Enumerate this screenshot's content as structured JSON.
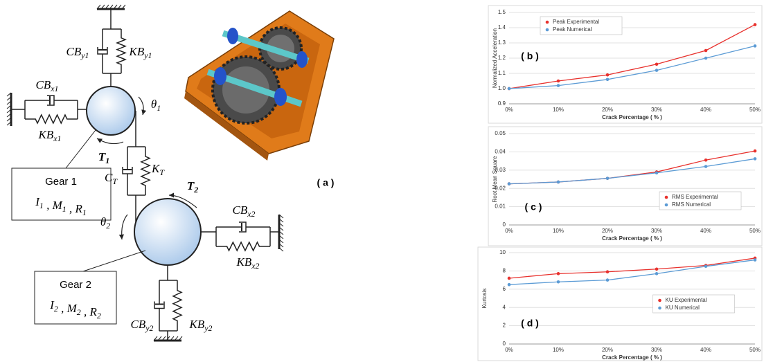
{
  "diagram": {
    "labels": [
      {
        "main": "CB",
        "sub": "y1"
      },
      {
        "main": "KB",
        "sub": "y1"
      },
      {
        "main": "CB",
        "sub": "x1"
      },
      {
        "main": "KB",
        "sub": "x1"
      },
      {
        "main": "θ",
        "sub": "1"
      },
      {
        "main": "T",
        "sub": "1"
      },
      {
        "main": "C",
        "sub": "T"
      },
      {
        "main": "K",
        "sub": "T"
      },
      {
        "main": "T",
        "sub": "2"
      },
      {
        "main": "θ",
        "sub": "2"
      },
      {
        "main": "CB",
        "sub": "x2"
      },
      {
        "main": "KB",
        "sub": "x2"
      },
      {
        "main": "CB",
        "sub": "y2"
      },
      {
        "main": "KB",
        "sub": "y2"
      }
    ],
    "gear1": {
      "title": "Gear 1",
      "params": [
        {
          "main": "I",
          "sub": "1"
        },
        {
          "main": " , M",
          "sub": "1"
        },
        {
          "main": " , R",
          "sub": "1"
        }
      ]
    },
    "gear2": {
      "title": "Gear 2",
      "params": [
        {
          "main": "I",
          "sub": "2"
        },
        {
          "main": " , M",
          "sub": "2"
        },
        {
          "main": " , R",
          "sub": "2"
        }
      ]
    },
    "caption": "( a )"
  },
  "chart_data": [
    {
      "type": "line",
      "annotation": "( b )",
      "y_label": "Normalized Acceleration",
      "x_label": "Crack Percentage ( % )",
      "categories": [
        "0%",
        "10%",
        "20%",
        "30%",
        "40%",
        "50%"
      ],
      "ylim": [
        0.9,
        1.5
      ],
      "yticks": [
        0.9,
        {
          "value": 1,
          "label": "1.0"
        },
        1.1,
        1.2,
        1.3,
        1.4,
        1.5
      ],
      "grid": true,
      "legend": "upper-left",
      "series": [
        {
          "name": "Peak Experimental",
          "color": "#e8312d",
          "values": [
            1.0,
            1.05,
            1.09,
            1.16,
            1.25,
            1.42
          ]
        },
        {
          "name": "Peak Numerical",
          "color": "#5b9bd5",
          "values": [
            1.0,
            1.02,
            1.06,
            1.12,
            1.2,
            1.28
          ]
        }
      ]
    },
    {
      "type": "line",
      "annotation": "( c )",
      "y_label": "Root Mean Square",
      "x_label": "Crack Percentage ( % )",
      "categories": [
        "0%",
        "10%",
        "20%",
        "30%",
        "40%",
        "50%"
      ],
      "ylim": [
        0,
        0.05
      ],
      "yticks": [
        0,
        0.01,
        0.02,
        0.03,
        0.04,
        0.05
      ],
      "grid": true,
      "legend": "lower-right",
      "series": [
        {
          "name": "RMS Experimental",
          "color": "#e8312d",
          "values": [
            0.0225,
            0.0235,
            0.0255,
            0.029,
            0.0355,
            0.0405
          ]
        },
        {
          "name": "RMS Numerical",
          "color": "#5b9bd5",
          "values": [
            0.0225,
            0.0235,
            0.0255,
            0.0285,
            0.032,
            0.0362
          ]
        }
      ]
    },
    {
      "type": "line",
      "annotation": "( d )",
      "y_label": "Kurtosis",
      "x_label": "Crack Percentage ( % )",
      "categories": [
        "0%",
        "10%",
        "20%",
        "30%",
        "40%",
        "50%"
      ],
      "ylim": [
        0,
        10
      ],
      "yticks": [
        0,
        2,
        4,
        6,
        8,
        10
      ],
      "grid": true,
      "legend": "lower-center",
      "series": [
        {
          "name": "KU Experimental",
          "color": "#e8312d",
          "values": [
            7.2,
            7.7,
            7.9,
            8.2,
            8.6,
            9.4
          ]
        },
        {
          "name": "KU Numerical",
          "color": "#5b9bd5",
          "values": [
            6.5,
            6.8,
            7.0,
            7.7,
            8.5,
            9.2
          ]
        }
      ]
    }
  ]
}
